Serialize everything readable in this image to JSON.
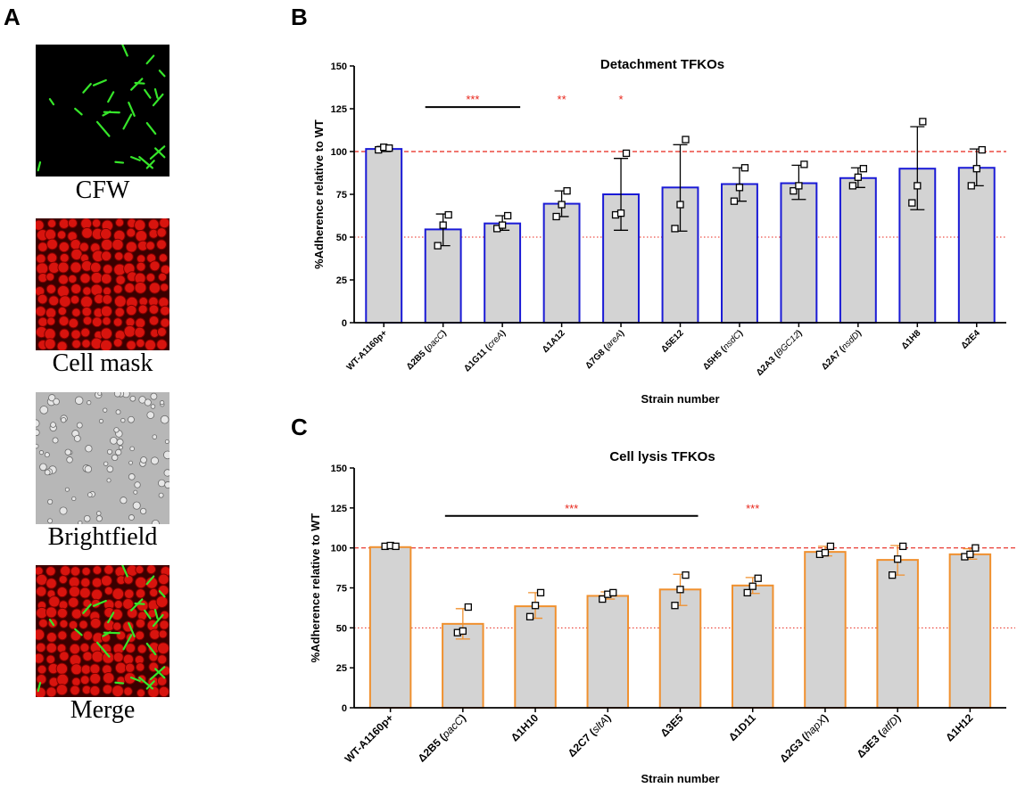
{
  "panel_labels": {
    "a": "A",
    "b": "B",
    "c": "C"
  },
  "panel_a": {
    "images": [
      {
        "label": "CFW",
        "kind": "cfw"
      },
      {
        "label": "Cell mask",
        "kind": "cellmask"
      },
      {
        "label": "Brightfield",
        "kind": "brightfield"
      },
      {
        "label": "Merge",
        "kind": "merge"
      }
    ]
  },
  "chart_data": [
    {
      "type": "bar",
      "panel": "B",
      "title": "Detachment TFKOs",
      "xlabel": "Strain number",
      "ylabel": "%Adherence relative to WT",
      "ylim": [
        0,
        150
      ],
      "yticks": [
        0,
        25,
        50,
        75,
        100,
        125,
        150
      ],
      "reference_lines": [
        100,
        50
      ],
      "bar_color": "#1a1ad6",
      "categories": [
        {
          "base": "WT-A1160p+",
          "gene": ""
        },
        {
          "base": "Δ2B5 ",
          "gene": "pacC",
          "paren": true
        },
        {
          "base": "Δ1G11 ",
          "gene": "creA",
          "paren": true
        },
        {
          "base": "Δ1A12",
          "gene": ""
        },
        {
          "base": "Δ7G8 ",
          "gene": "areA",
          "paren": true
        },
        {
          "base": "Δ5E12",
          "gene": ""
        },
        {
          "base": "Δ5H5 ",
          "gene": "nsdC",
          "paren": true
        },
        {
          "base": "Δ2A3 ",
          "gene": "BGC12",
          "paren": true
        },
        {
          "base": "Δ2A7 ",
          "gene": "nsdD",
          "paren": true
        },
        {
          "base": "Δ1H8",
          "gene": ""
        },
        {
          "base": "Δ2E4",
          "gene": ""
        }
      ],
      "values": [
        101.5,
        54.5,
        58,
        69.5,
        75,
        79,
        81,
        81.5,
        84.5,
        90,
        90.5
      ],
      "errors": [
        [
          100,
          103
        ],
        [
          45,
          63.5
        ],
        [
          54,
          62.5
        ],
        [
          62,
          77
        ],
        [
          54,
          96
        ],
        [
          53.5,
          104
        ],
        [
          71,
          90.5
        ],
        [
          72,
          92
        ],
        [
          79,
          90.5
        ],
        [
          66,
          114.5
        ],
        [
          80,
          101.5
        ]
      ],
      "points": [
        [
          101,
          102.5,
          102
        ],
        [
          45,
          57,
          63
        ],
        [
          55,
          57,
          62.5
        ],
        [
          62,
          69,
          77
        ],
        [
          63,
          64,
          99
        ],
        [
          55,
          69,
          107
        ],
        [
          71,
          79,
          90.5
        ],
        [
          77,
          80,
          92.5
        ],
        [
          80,
          85,
          90
        ],
        [
          70,
          80,
          117.5
        ],
        [
          80,
          90,
          101
        ]
      ],
      "significance": [
        {
          "text": "***",
          "bar_from": 1,
          "bar_to": 2,
          "y": 126
        },
        {
          "text": "**",
          "bar_from": 3,
          "bar_to": 3,
          "y": 126
        },
        {
          "text": "*",
          "bar_from": 4,
          "bar_to": 4,
          "y": 126
        }
      ]
    },
    {
      "type": "bar",
      "panel": "C",
      "title": "Cell lysis TFKOs",
      "xlabel": "Strain number",
      "ylabel": "%Adherence relative to WT",
      "ylim": [
        0,
        150
      ],
      "yticks": [
        0,
        25,
        50,
        75,
        100,
        125,
        150
      ],
      "reference_lines": [
        100,
        50
      ],
      "bar_color": "#f0902e",
      "categories": [
        {
          "base": "WT-A1160p+",
          "gene": ""
        },
        {
          "base": "Δ2B5 ",
          "gene": "pacC",
          "paren": true
        },
        {
          "base": "Δ1H10",
          "gene": ""
        },
        {
          "base": "Δ2C7 ",
          "gene": "sltA",
          "paren": true
        },
        {
          "base": "Δ3E5",
          "gene": ""
        },
        {
          "base": "Δ1D11",
          "gene": ""
        },
        {
          "base": "Δ2G3 ",
          "gene": "hapX",
          "paren": true
        },
        {
          "base": "Δ3E3 ",
          "gene": "atfD",
          "paren": true
        },
        {
          "base": "Δ1H12",
          "gene": ""
        }
      ],
      "values": [
        100.5,
        52.5,
        63.5,
        70,
        74,
        76.5,
        97.5,
        92.5,
        96
      ],
      "errors": [
        [
          100,
          102
        ],
        [
          43,
          62
        ],
        [
          56,
          72
        ],
        [
          68,
          72.5
        ],
        [
          64,
          83.5
        ],
        [
          71.5,
          81.5
        ],
        [
          95,
          101
        ],
        [
          83,
          101.5
        ],
        [
          93,
          99.5
        ]
      ],
      "points": [
        [
          101,
          101.5,
          101
        ],
        [
          47,
          48,
          63
        ],
        [
          57,
          64,
          72
        ],
        [
          68,
          71,
          72
        ],
        [
          64,
          74,
          83
        ],
        [
          72,
          76,
          81
        ],
        [
          96,
          97,
          101
        ],
        [
          83,
          93,
          101
        ],
        [
          94.5,
          96,
          100
        ]
      ],
      "significance": [
        {
          "text": "***",
          "bar_from": 1,
          "bar_to": 4,
          "y": 120
        },
        {
          "text": "***",
          "bar_from": 5,
          "bar_to": 5,
          "y": 120
        }
      ]
    }
  ]
}
